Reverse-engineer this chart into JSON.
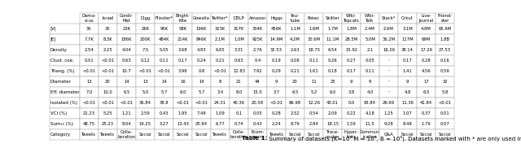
{
  "columns": [
    "",
    "Dama-\nscus",
    "Israel",
    "Condi-\nMat",
    "Digg",
    "Flixster*",
    "Bright-\nKite",
    "Gowalla",
    "Twitter*",
    "DBLP",
    "Amazon",
    "Higgs",
    "You-\ntube",
    "Pokec",
    "Skitter",
    "Wiki-\nTopcats",
    "Wiki-\nTalk",
    "Stack*",
    "Orkut",
    "Live-\nJournal",
    "Friend-\nster"
  ],
  "rows": [
    [
      "|V|",
      "3K",
      "3K",
      "23K",
      "26K",
      "95K",
      "58K",
      "196K",
      "323K",
      "317K",
      "334K",
      "456K",
      "1.1M",
      "1.6M",
      "1.7M",
      "1.8M",
      "2.4M",
      "2.6M",
      "3.1M",
      "4.8M",
      "65.6M"
    ],
    [
      "|E|",
      "7.7K",
      "8.3K",
      "186K",
      "200K",
      "484K",
      "214K",
      "846K",
      "2.1M",
      "1.0M",
      "925K",
      "14.9M",
      "4.2M",
      "30.6M",
      "11.1M",
      "28.5M",
      "5.0M",
      "36.2M",
      "117M",
      "69M",
      "1.8B"
    ],
    [
      "Density",
      "2.54",
      "2.25",
      "4.04",
      "7.5",
      "5.05",
      "3.68",
      "4.83",
      "6.65",
      "3.31",
      "2.76",
      "32.53",
      "2.63",
      "18.75",
      "6.54",
      "15.92",
      "2.1",
      "16.26",
      "38.14",
      "17.26",
      "27.53"
    ],
    [
      "Clust. coe.",
      "0.01",
      "<0.01",
      "0.63",
      "0.12",
      "0.11",
      "0.17",
      "0.24",
      "0.21",
      "0.63",
      "0.4",
      "0.19",
      "0.08",
      "0.11",
      "0.26",
      "0.27",
      "0.05",
      "-",
      "0.17",
      "0.28",
      "0.16"
    ],
    [
      "Triang. (%)",
      "<0.01",
      "<0.01",
      "10.7",
      "<0.01",
      "<0.01",
      "3.98",
      "0.8",
      "<0.01",
      "12.83",
      "7.92",
      "0.29",
      "0.21",
      "1.61",
      "0.18",
      "0.17",
      "0.11",
      "-",
      "1.41",
      "4.56",
      "0.59"
    ],
    [
      "Diameter",
      "13",
      "20",
      "14",
      "13",
      "14",
      "16",
      "14",
      "8",
      "21",
      "44",
      "9",
      "20",
      "11",
      "25",
      "9",
      "9",
      "-",
      "9",
      "17",
      "32"
    ],
    [
      "Eff. diameter",
      "7.0",
      "10.0",
      "6.5",
      "5.0",
      "5.7",
      "6.0",
      "5.7",
      "3.4",
      "8.0",
      "15.0",
      "3.7",
      "6.5",
      "5.2",
      "6.0",
      "3.8",
      "4.0",
      "-",
      "4.8",
      "6.5",
      "5.8"
    ],
    [
      "Isolated (%)",
      "<0.01",
      "<0.01",
      "<0.01",
      "36.84",
      "38.8",
      "<0.01",
      "<0.01",
      "24.31",
      "40.36",
      "20.58",
      "<0.01",
      "66.98",
      "12.26",
      "43.01",
      "0.0",
      "93.84",
      "26.69",
      "11.36",
      "41.84",
      "<0.01"
    ],
    [
      "VCI (%)",
      "21.23",
      "5.25",
      "1.21",
      "2.59",
      "0.43",
      "1.95",
      "7.49",
      "1.09",
      "0.1",
      "0.05",
      "0.28",
      "2.52",
      "0.54",
      "2.09",
      "0.22",
      "4.18",
      "1.25",
      "1.07",
      "0.37",
      "0.01"
    ],
    [
      "Sum₁₀ (%)",
      "48.75",
      "25.23",
      "8.04",
      "19.25",
      "3.27",
      "13.43",
      "25.84",
      "6.77",
      "0.74",
      "0.43",
      "2.24",
      "8.79",
      "2.84",
      "18.15",
      "1.59",
      "11.5",
      "9.28",
      "8.48",
      "1.79",
      "0.07"
    ],
    [
      "Category",
      "Tweets",
      "Tweets",
      "Colla-\nboration",
      "Social",
      "Social",
      "Social",
      "Social",
      "Tweets",
      "Colla-\nboration",
      "Ecom-\nmerce",
      "Tweets",
      "Social",
      "Social",
      "Trace-\nroutes",
      "Hyper-\nlinks",
      "Commun-\nication",
      "Q&A",
      "Social",
      "Social",
      "Social"
    ]
  ],
  "caption_bold": "Table 1:",
  "caption_normal": " Summary of datasets (K=10³ M = 10⁶, B = 10⁹). Datasets marked with * are only used in LND edge weight model."
}
